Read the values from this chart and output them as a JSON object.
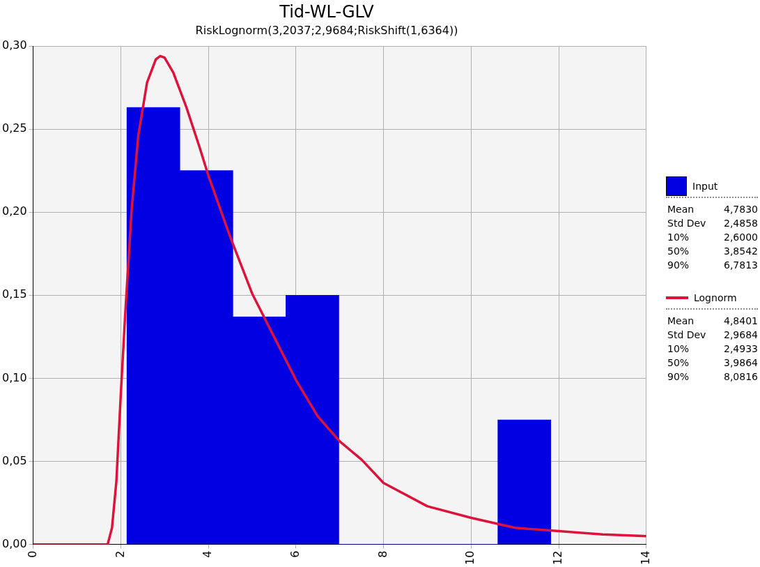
{
  "chart_data": {
    "type": "histogram",
    "title": "Tid-WL-GLV",
    "subtitle": "RiskLognorm(3,2037;2,9684;RiskShift(1,6364))",
    "bins": [
      2.14,
      3.35,
      4.56,
      5.77,
      6.98,
      8.19,
      9.4,
      10.61,
      11.82
    ],
    "series": [
      {
        "name": "Input",
        "color": "#0000e0",
        "values": [
          0.263,
          0.225,
          0.137,
          0.15,
          0,
          0,
          0,
          0.075
        ]
      },
      {
        "name": "Lognorm",
        "type": "line",
        "color": "#dc143c",
        "x": [
          0,
          1.7,
          1.8,
          1.9,
          2.0,
          2.1,
          2.25,
          2.4,
          2.6,
          2.8,
          2.9,
          3.0,
          3.2,
          3.5,
          3.8,
          4.0,
          4.5,
          5.0,
          5.5,
          6.0,
          6.5,
          7.0,
          7.5,
          8.0,
          9.0,
          10,
          11,
          12,
          13,
          14
        ],
        "values": [
          0,
          0,
          0.01,
          0.038,
          0.09,
          0.138,
          0.202,
          0.246,
          0.278,
          0.292,
          0.294,
          0.293,
          0.284,
          0.263,
          0.239,
          0.222,
          0.185,
          0.151,
          0.125,
          0.099,
          0.077,
          0.062,
          0.051,
          0.037,
          0.023,
          0.016,
          0.01,
          0.008,
          0.006,
          0.005
        ]
      }
    ],
    "xlim": [
      0,
      14
    ],
    "xticks": [
      0,
      2,
      4,
      6,
      8,
      10,
      12,
      14
    ],
    "ylim": [
      0,
      0.3
    ],
    "yticks": [
      {
        "value": 0,
        "label": "0,00"
      },
      {
        "value": 0.05,
        "label": "0,05"
      },
      {
        "value": 0.1,
        "label": "0,10"
      },
      {
        "value": 0.15,
        "label": "0,15"
      },
      {
        "value": 0.2,
        "label": "0,20"
      },
      {
        "value": 0.25,
        "label": "0,25"
      },
      {
        "value": 0.3,
        "label": "0,30"
      }
    ],
    "grid": true,
    "legend": "right",
    "marker": "none",
    "line_style": "solid",
    "annotations": [
      "Mean",
      "4,7830",
      "Std Dev",
      "2,4858",
      "10%",
      "2,6000",
      "50%",
      "3,8542",
      "90%",
      "6,7813",
      "Mean",
      "4,8401",
      "Std Dev",
      "2,9684",
      "10%",
      "2,4933",
      "50%",
      "3,9864",
      "90%",
      "8,0816"
    ]
  }
}
